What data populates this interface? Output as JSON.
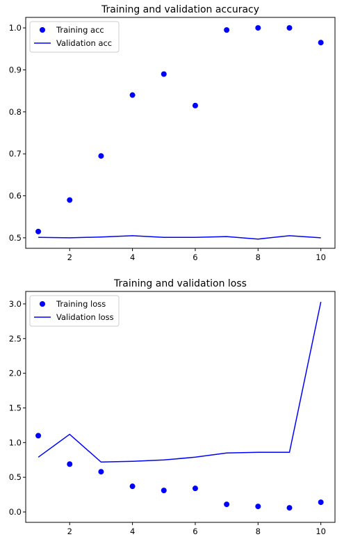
{
  "chart_data": [
    {
      "type": "line",
      "title": "Training and validation accuracy",
      "xlabel": "",
      "ylabel": "",
      "x": [
        1,
        2,
        3,
        4,
        5,
        6,
        7,
        8,
        9,
        10
      ],
      "xlim": [
        0.6,
        10.45
      ],
      "ylim": [
        0.475,
        1.025
      ],
      "xticks": [
        2,
        4,
        6,
        8,
        10
      ],
      "yticks": [
        0.5,
        0.6,
        0.7,
        0.8,
        0.9,
        1.0
      ],
      "ytick_labels": [
        "0.5",
        "0.6",
        "0.7",
        "0.8",
        "0.9",
        "1.0"
      ],
      "legend": "top-left",
      "grid": false,
      "series": [
        {
          "name": "Training acc",
          "style": "points",
          "color": "#0000ff",
          "values": [
            0.515,
            0.59,
            0.695,
            0.84,
            0.89,
            0.815,
            0.995,
            1.0,
            1.0,
            0.965
          ]
        },
        {
          "name": "Validation acc",
          "style": "line",
          "color": "#0000ff",
          "values": [
            0.501,
            0.5,
            0.502,
            0.505,
            0.501,
            0.501,
            0.503,
            0.497,
            0.505,
            0.5
          ]
        }
      ]
    },
    {
      "type": "line",
      "title": "Training and validation loss",
      "xlabel": "",
      "ylabel": "",
      "x": [
        1,
        2,
        3,
        4,
        5,
        6,
        7,
        8,
        9,
        10
      ],
      "xlim": [
        0.6,
        10.45
      ],
      "ylim": [
        -0.15,
        3.18
      ],
      "xticks": [
        2,
        4,
        6,
        8,
        10
      ],
      "yticks": [
        0.0,
        0.5,
        1.0,
        1.5,
        2.0,
        2.5,
        3.0
      ],
      "ytick_labels": [
        "0.0",
        "0.5",
        "1.0",
        "1.5",
        "2.0",
        "2.5",
        "3.0"
      ],
      "legend": "top-left",
      "grid": false,
      "series": [
        {
          "name": "Training loss",
          "style": "points",
          "color": "#0000ff",
          "values": [
            1.1,
            0.69,
            0.58,
            0.37,
            0.31,
            0.34,
            0.11,
            0.08,
            0.06,
            0.14
          ]
        },
        {
          "name": "Validation loss",
          "style": "line",
          "color": "#0000ff",
          "values": [
            0.79,
            1.12,
            0.72,
            0.73,
            0.75,
            0.79,
            0.85,
            0.86,
            0.86,
            3.03
          ]
        }
      ]
    }
  ]
}
